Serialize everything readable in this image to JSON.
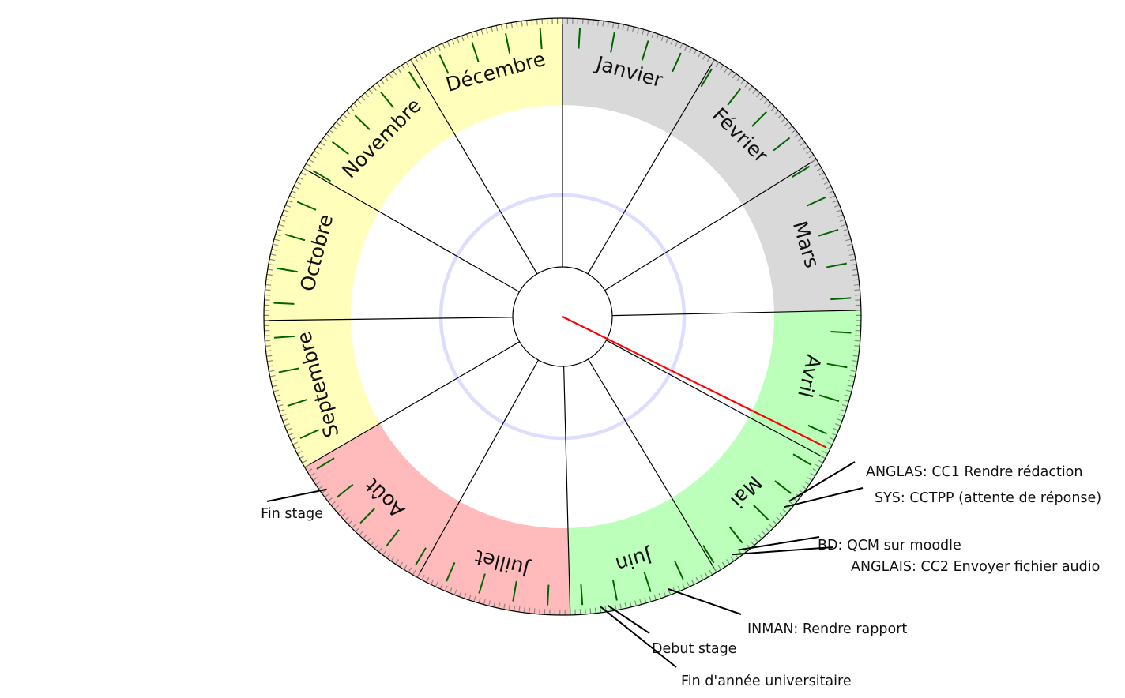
{
  "months": [
    {
      "name": "Janvier",
      "color": "#d9d9d9"
    },
    {
      "name": "Février",
      "color": "#d9d9d9"
    },
    {
      "name": "Mars",
      "color": "#d9d9d9"
    },
    {
      "name": "Avril",
      "color": "#bbffbb"
    },
    {
      "name": "Mai",
      "color": "#bbffbb"
    },
    {
      "name": "Juin",
      "color": "#bbffbb"
    },
    {
      "name": "Juillet",
      "color": "#ffbbbb"
    },
    {
      "name": "Août",
      "color": "#ffbbbb"
    },
    {
      "name": "Septembre",
      "color": "#ffffbb"
    },
    {
      "name": "Octobre",
      "color": "#ffffbb"
    },
    {
      "name": "Novembre",
      "color": "#ffffbb"
    },
    {
      "name": "Décembre",
      "color": "#ffffbb"
    }
  ],
  "colors": {
    "today_hand": "#ff0000",
    "week_tick": "#006400",
    "day_tick": "#888888",
    "inner_ring": "#ddddff",
    "line": "#000000"
  },
  "today_day_of_year": 118,
  "events": [
    {
      "label": "ANGLAS: CC1 Rendre rédaction",
      "day_of_year": 131
    },
    {
      "label": "SYS: CCTPP (attente de réponse)",
      "day_of_year": 132.5
    },
    {
      "label": "BD: QCM sur moodle",
      "day_of_year": 145
    },
    {
      "label": "ANGLAIS: CC2 Envoyer fichier audio",
      "day_of_year": 146.5
    },
    {
      "label": "INMAN: Rendre rapport",
      "day_of_year": 161
    },
    {
      "label": "Debut stage",
      "day_of_year": 173.5
    },
    {
      "label": "Fin d'année universitaire",
      "day_of_year": 175
    },
    {
      "label": "Fin stage",
      "day_of_year": 237
    }
  ]
}
